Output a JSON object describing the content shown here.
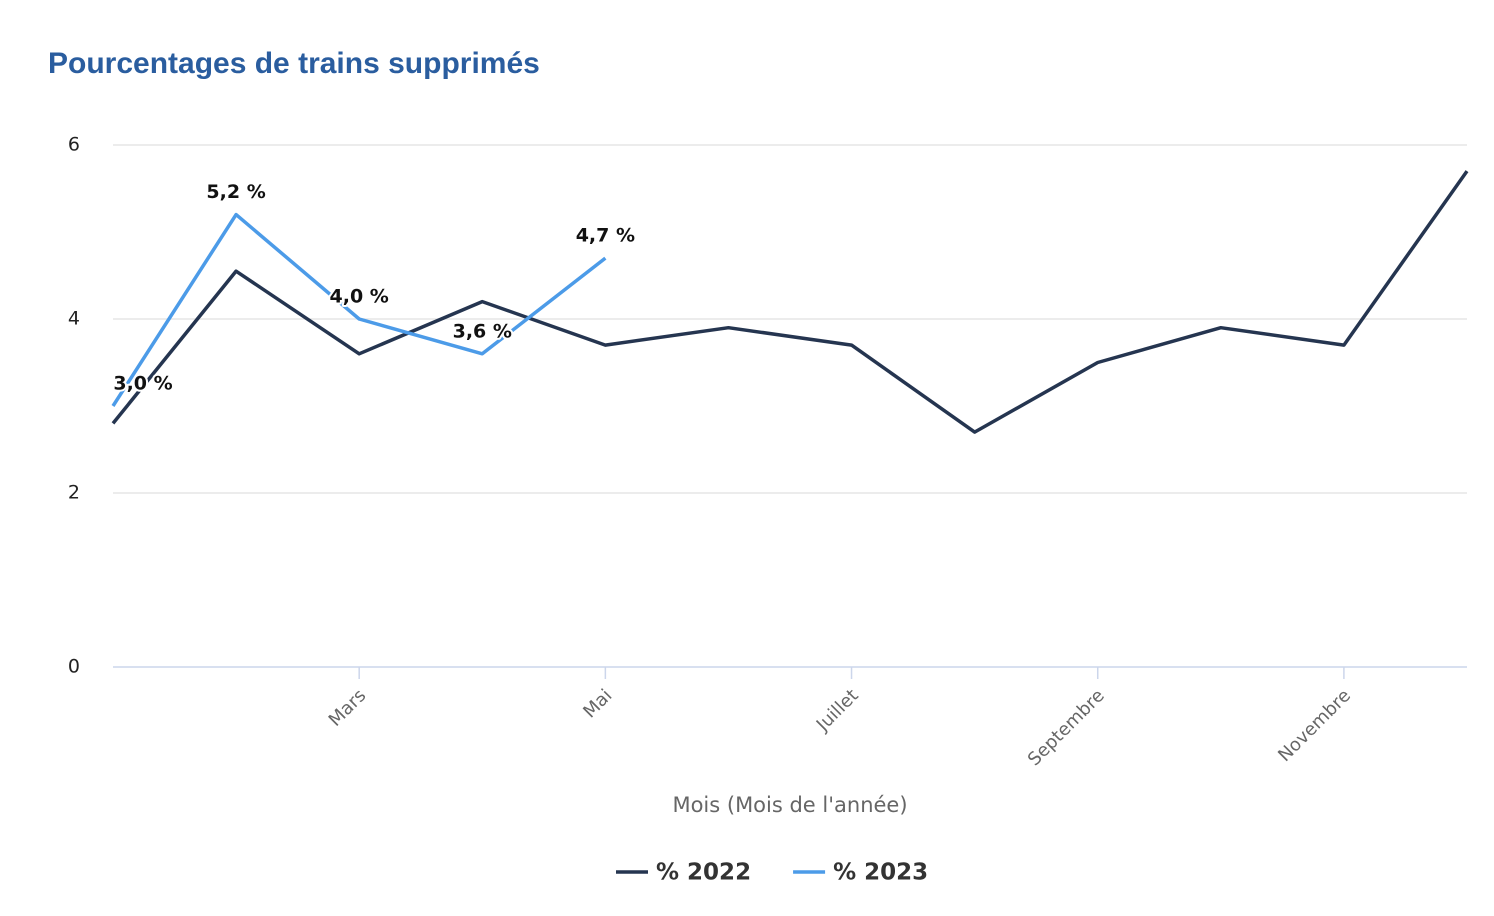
{
  "chart_data": {
    "type": "line",
    "title": "Pourcentages de trains supprimés",
    "x_label": "Mois (Mois de l'année)",
    "categories": [
      null,
      null,
      "Mars",
      null,
      "Mai",
      null,
      "Juillet",
      null,
      "Septembre",
      null,
      "Novembre",
      null
    ],
    "series": [
      {
        "name": "% 2022",
        "color": "#253550",
        "values": [
          2.8,
          4.55,
          3.6,
          4.2,
          3.7,
          3.9,
          3.7,
          2.7,
          3.5,
          3.9,
          3.7,
          5.7
        ]
      },
      {
        "name": "% 2023",
        "color": "#4c9be8",
        "values": [
          3.0,
          5.2,
          4.0,
          3.6,
          4.7,
          null,
          null,
          null,
          null,
          null,
          null,
          null
        ],
        "value_labels": [
          "3,0 %",
          "5,2 %",
          "4,0 %",
          "3,6 %",
          "4,7 %",
          null,
          null,
          null,
          null,
          null,
          null,
          null
        ]
      }
    ],
    "ylim": [
      0,
      6
    ],
    "yticks": [
      0,
      2,
      4,
      6
    ],
    "grid": true,
    "legend": "bottom"
  }
}
